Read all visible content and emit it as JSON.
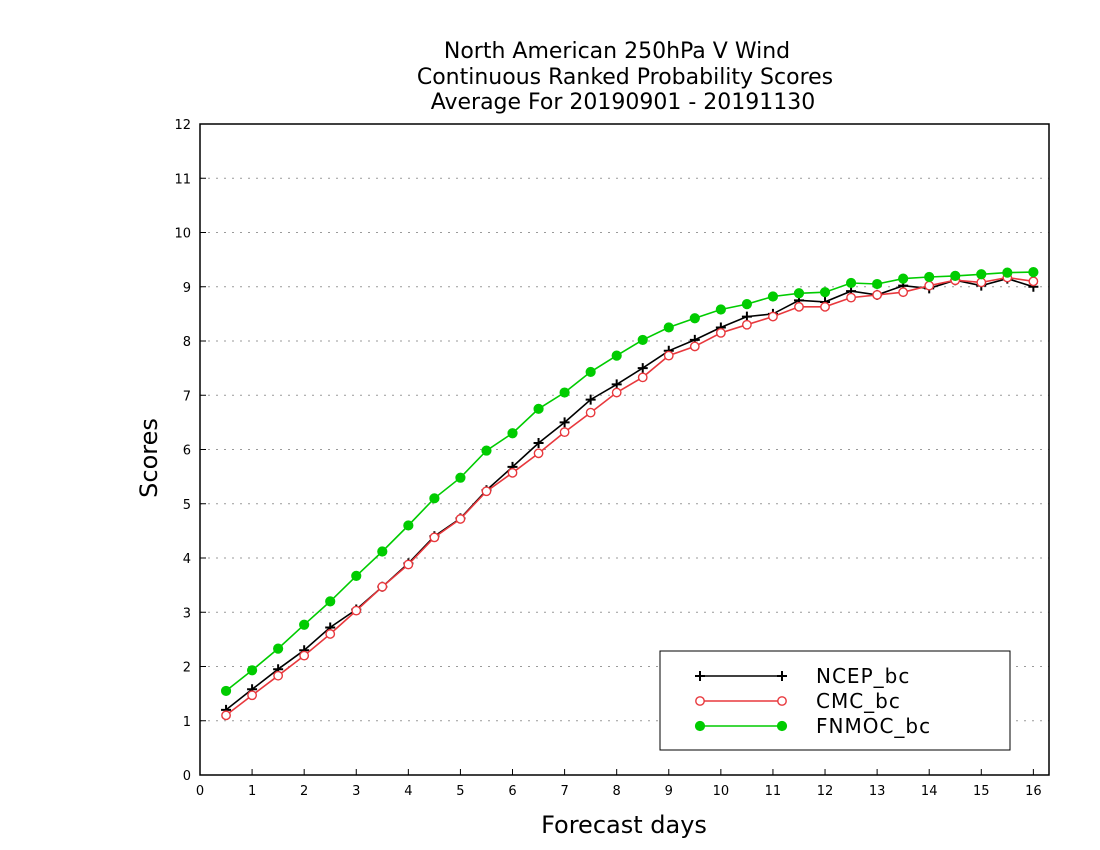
{
  "chart_data": {
    "type": "line",
    "title": [
      "North American 250hPa V Wind",
      "Continuous Ranked Probability Scores",
      "Average For 20190901 - 20191130"
    ],
    "xlabel": "Forecast days",
    "ylabel": "Scores",
    "xlim": [
      0,
      16.3
    ],
    "ylim": [
      0,
      12
    ],
    "xticks": [
      0,
      1,
      2,
      3,
      4,
      5,
      6,
      7,
      8,
      9,
      10,
      11,
      12,
      13,
      14,
      15,
      16
    ],
    "yticks": [
      0,
      1,
      2,
      3,
      4,
      5,
      6,
      7,
      8,
      9,
      10,
      11,
      12
    ],
    "grid": true,
    "legend_position": "bottom-right",
    "x": [
      0.5,
      1,
      1.5,
      2,
      2.5,
      3,
      3.5,
      4,
      4.5,
      5,
      5.5,
      6,
      6.5,
      7,
      7.5,
      8,
      8.5,
      9,
      9.5,
      10,
      10.5,
      11,
      11.5,
      12,
      12.5,
      13,
      13.5,
      14,
      14.5,
      15,
      15.5,
      16
    ],
    "series": [
      {
        "name": "NCEP_bc",
        "color": "#000000",
        "marker": "plus",
        "values": [
          1.2,
          1.58,
          1.95,
          2.3,
          2.72,
          3.05,
          3.47,
          3.9,
          4.4,
          4.73,
          5.25,
          5.68,
          6.12,
          6.5,
          6.92,
          7.2,
          7.5,
          7.82,
          8.02,
          8.25,
          8.45,
          8.5,
          8.75,
          8.72,
          8.92,
          8.85,
          9.02,
          8.97,
          9.12,
          9.02,
          9.15,
          9.0
        ]
      },
      {
        "name": "CMC_bc",
        "color": "#e8383d",
        "marker": "open-circle",
        "values": [
          1.1,
          1.47,
          1.83,
          2.2,
          2.6,
          3.03,
          3.47,
          3.88,
          4.38,
          4.72,
          5.23,
          5.57,
          5.93,
          6.32,
          6.68,
          7.05,
          7.33,
          7.73,
          7.9,
          8.15,
          8.3,
          8.45,
          8.63,
          8.63,
          8.8,
          8.85,
          8.9,
          9.02,
          9.12,
          9.08,
          9.17,
          9.1
        ]
      },
      {
        "name": "FNMOC_bc",
        "color": "#00cc00",
        "marker": "filled-circle",
        "values": [
          1.55,
          1.93,
          2.33,
          2.77,
          3.2,
          3.67,
          4.12,
          4.6,
          5.1,
          5.48,
          5.98,
          6.3,
          6.75,
          7.05,
          7.43,
          7.73,
          8.02,
          8.25,
          8.42,
          8.58,
          8.68,
          8.82,
          8.88,
          8.9,
          9.07,
          9.05,
          9.15,
          9.18,
          9.2,
          9.23,
          9.26,
          9.27
        ]
      }
    ]
  }
}
